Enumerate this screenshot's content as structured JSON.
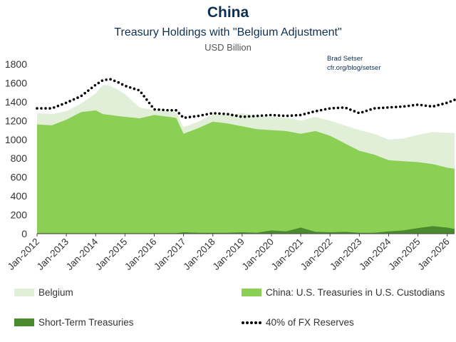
{
  "header": {
    "title": "China",
    "subtitle": "Treasury Holdings with \"Belgium Adjustment\"",
    "units": "USD Billion",
    "credit_name": "Brad Setser",
    "credit_url": "cfr.org/blog/setser"
  },
  "colors": {
    "belgium": "#e2efd8",
    "custodians": "#8ccf55",
    "short_term": "#4a8a2e",
    "reserves": "#000000"
  },
  "chart_data": {
    "type": "area",
    "title": "China",
    "subtitle": "Treasury Holdings with \"Belgium Adjustment\"",
    "ylabel": "USD Billion",
    "ylim": [
      0,
      1800
    ],
    "yticks": [
      0,
      200,
      400,
      600,
      800,
      1000,
      1200,
      1400,
      1600,
      1800
    ],
    "xticks": [
      "Jan-2012",
      "Jan-2013",
      "Jan-2014",
      "Jan-2015",
      "Jan-2016",
      "Jan-2017",
      "Jan-2018",
      "Jan-2019",
      "Jan-2020",
      "Jan-2021",
      "Jan-2022",
      "Jan-2023",
      "Jan-2024",
      "Jan-2025",
      "Jan-2026"
    ],
    "x": [
      2012.0,
      2012.5,
      2013.0,
      2013.5,
      2014.0,
      2014.25,
      2014.5,
      2014.75,
      2015.0,
      2015.5,
      2016.0,
      2016.5,
      2016.75,
      2017.0,
      2017.5,
      2018.0,
      2018.5,
      2019.0,
      2019.5,
      2020.0,
      2020.5,
      2021.0,
      2021.5,
      2022.0,
      2022.5,
      2023.0,
      2023.5,
      2024.0,
      2024.5,
      2025.0,
      2025.5,
      2026.0,
      2026.25
    ],
    "series": [
      {
        "name": "Short-Term Treasuries",
        "stacked": false,
        "values": [
          5,
          5,
          5,
          5,
          5,
          5,
          5,
          5,
          5,
          5,
          5,
          5,
          5,
          15,
          10,
          10,
          10,
          15,
          10,
          35,
          25,
          65,
          20,
          15,
          20,
          10,
          10,
          25,
          35,
          60,
          80,
          65,
          50
        ]
      },
      {
        "name": "China: U.S. Treasuries in U.S. Custodians",
        "stacked": false,
        "values": [
          1160,
          1150,
          1210,
          1290,
          1310,
          1270,
          1260,
          1250,
          1240,
          1225,
          1260,
          1240,
          1230,
          1060,
          1120,
          1190,
          1170,
          1140,
          1110,
          1100,
          1090,
          1060,
          1090,
          1040,
          960,
          880,
          840,
          780,
          770,
          760,
          740,
          700,
          690
        ]
      },
      {
        "name": "Belgium",
        "stacked": false,
        "values": [
          1280,
          1270,
          1300,
          1380,
          1490,
          1580,
          1570,
          1530,
          1480,
          1340,
          1310,
          1300,
          1290,
          1130,
          1190,
          1270,
          1260,
          1280,
          1250,
          1240,
          1230,
          1200,
          1240,
          1200,
          1150,
          1100,
          1060,
          1000,
          1010,
          1050,
          1080,
          1070,
          1070
        ]
      },
      {
        "name": "40% of FX Reserves",
        "style": "dotted",
        "values": [
          1330,
          1330,
          1390,
          1460,
          1580,
          1630,
          1640,
          1610,
          1570,
          1520,
          1320,
          1310,
          1310,
          1230,
          1250,
          1280,
          1270,
          1240,
          1250,
          1260,
          1250,
          1260,
          1300,
          1330,
          1340,
          1280,
          1330,
          1340,
          1350,
          1370,
          1350,
          1390,
          1420
        ]
      }
    ],
    "legend_position": "bottom",
    "grid": false
  }
}
